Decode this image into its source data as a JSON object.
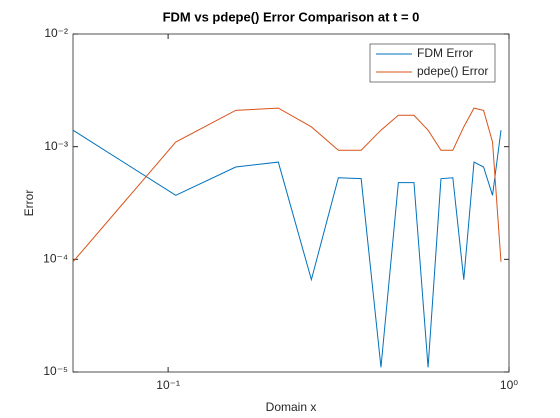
{
  "chart_data": {
    "type": "line",
    "title": "FDM vs pdepe() Error Comparison at t = 0",
    "x_label": "Domain x",
    "y_label": "Error",
    "x": [
      0.0526,
      0.1053,
      0.1579,
      0.2105,
      0.2632,
      0.3158,
      0.3684,
      0.4211,
      0.4737,
      0.5263,
      0.5789,
      0.6316,
      0.6842,
      0.7368,
      0.7895,
      0.8421,
      0.8947,
      0.9474
    ],
    "series": [
      {
        "name": "FDM Error",
        "color": "#0072BD",
        "values": [
          0.0014,
          0.00037,
          0.00066,
          0.00073,
          6.6e-05,
          0.00053,
          0.00052,
          1.1e-05,
          0.00048,
          0.00048,
          1.1e-05,
          0.00052,
          0.00053,
          6.6e-05,
          0.00073,
          0.00066,
          0.00037,
          0.0014
        ]
      },
      {
        "name": "pdepe() Error",
        "color": "#D95319",
        "values": [
          9.5e-05,
          0.0011,
          0.0021,
          0.0022,
          0.0015,
          0.00093,
          0.00093,
          0.0014,
          0.0019,
          0.0019,
          0.0014,
          0.00093,
          0.00093,
          0.0015,
          0.0022,
          0.0021,
          0.0011,
          9.5e-05
        ]
      }
    ],
    "xlim": [
      0.0526,
      1
    ],
    "ylim": [
      1e-05,
      0.01
    ],
    "xticks": [
      {
        "value": 0.1,
        "label": "10⁻¹"
      },
      {
        "value": 1,
        "label": "10⁰"
      }
    ],
    "yticks": [
      {
        "value": 1e-05,
        "label": "10⁻⁵"
      },
      {
        "value": 0.0001,
        "label": "10⁻⁴"
      },
      {
        "value": 0.001,
        "label": "10⁻³"
      },
      {
        "value": 0.01,
        "label": "10⁻²"
      }
    ],
    "xscale": "log",
    "yscale": "log",
    "grid": false,
    "legend": "top-right"
  }
}
